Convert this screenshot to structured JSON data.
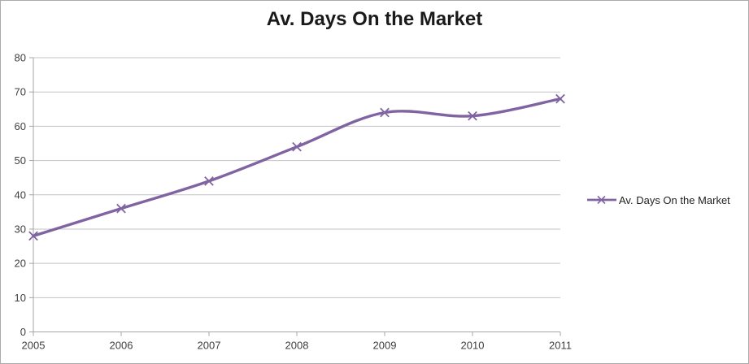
{
  "chart_data": {
    "type": "line",
    "title": "Av. Days On the Market",
    "categories": [
      "2005",
      "2006",
      "2007",
      "2008",
      "2009",
      "2010",
      "2011"
    ],
    "series": [
      {
        "name": "Av. Days On the Market",
        "values": [
          28,
          36,
          44,
          54,
          64,
          63,
          68
        ],
        "color": "#8064A2",
        "marker": "x",
        "smooth": true
      }
    ],
    "xlabel": "",
    "ylabel": "",
    "ylim": [
      0,
      80
    ],
    "yticks": [
      0,
      10,
      20,
      30,
      40,
      50,
      60,
      70,
      80
    ],
    "grid": true,
    "legend_position": "right",
    "colors": {
      "gridline": "#c3c3c3",
      "axis": "#a6a6a6",
      "tick_label": "#3f3f3f",
      "title": "#1a1a1a",
      "legend_text": "#1f1f1f",
      "border": "#ababab",
      "background": "#ffffff"
    }
  }
}
